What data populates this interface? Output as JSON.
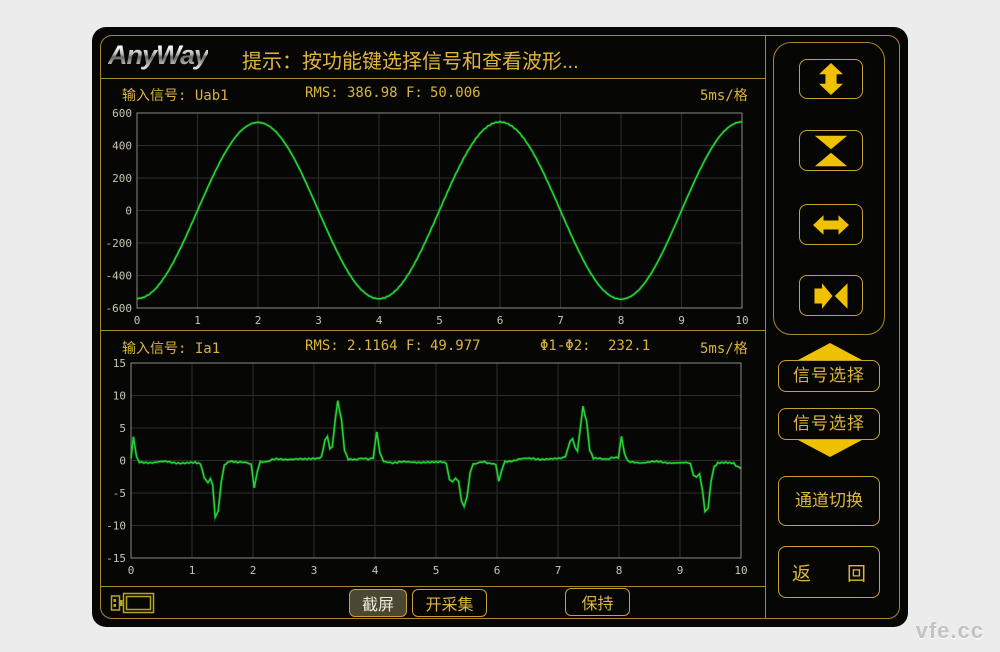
{
  "header": {
    "logo": "AnyWay",
    "prompt": "提示：按功能键选择信号和查看波形..."
  },
  "channel1": {
    "label": "输入信号:",
    "signal": "Uab1",
    "rms_label": "RMS:",
    "rms": "386.98",
    "f_label": "F:",
    "f": "50.006",
    "timebase": "5ms/格"
  },
  "channel2": {
    "label": "输入信号:",
    "signal": "Ia1",
    "rms_label": "RMS:",
    "rms": "2.1164",
    "f_label": "F:",
    "f": "49.977",
    "phase_label": "Φ1-Φ2:",
    "phase": "232.1",
    "timebase": "5ms/格"
  },
  "bottom_bar": {
    "screenshot": "截屏",
    "start_capture": "开采集",
    "hold": "保持"
  },
  "sidebar": {
    "signal_select_up": "信号选择",
    "signal_select_down": "信号选择",
    "channel_switch": "通道切换",
    "back_left": "返",
    "back_right": "回"
  },
  "icons": {
    "v_expand": "expand-vertical-arrows",
    "v_compress": "compress-vertical-arrows",
    "h_expand": "expand-horizontal-arrows",
    "h_compress": "compress-horizontal-arrows",
    "usb": "usb-screen-capture",
    "sig_up": "triangle-up",
    "sig_down": "triangle-down"
  },
  "watermark": "vfe.cc",
  "colors": {
    "page_bg": "#ececec",
    "screen_bg": "#060604",
    "gold_line": "#a8872a",
    "gold_border": "#c9a132",
    "gold_text": "#dcb53d",
    "icon_yellow": "#f0c100",
    "green": "#24d636",
    "green_glow": "#28dc3c",
    "grid": "#2d2d2d",
    "frame": "#8a8a8a",
    "axis_text": "#c9c6b4"
  },
  "chart_data": [
    {
      "type": "line",
      "signal": "Uab1",
      "xlim": [
        0,
        10
      ],
      "ylim": [
        -600,
        600
      ],
      "x_ticks": [
        0,
        1,
        2,
        3,
        4,
        5,
        6,
        7,
        8,
        9,
        10
      ],
      "y_ticks": [
        600,
        400,
        200,
        0,
        -200,
        -400,
        -600
      ],
      "x_unit": "div (5ms/格)",
      "grid": true,
      "x_start": 0,
      "x_step": 0.1,
      "noise": 4,
      "values": [
        -545,
        -538,
        -518,
        -486,
        -441,
        -385,
        -320,
        -247,
        -168,
        -85,
        0,
        85,
        168,
        247,
        320,
        385,
        441,
        486,
        518,
        538,
        545,
        538,
        518,
        486,
        441,
        385,
        320,
        247,
        168,
        85,
        0,
        -85,
        -168,
        -247,
        -320,
        -385,
        -441,
        -486,
        -518,
        -538,
        -545,
        -538,
        -518,
        -486,
        -441,
        -385,
        -320,
        -247,
        -168,
        -85,
        0,
        85,
        168,
        247,
        320,
        385,
        441,
        486,
        518,
        538,
        545,
        538,
        518,
        486,
        441,
        385,
        320,
        247,
        168,
        85,
        0,
        -85,
        -168,
        -247,
        -320,
        -385,
        -441,
        -486,
        -518,
        -538,
        -545,
        -538,
        -518,
        -486,
        -441,
        -385,
        -320,
        -247,
        -168,
        -85,
        0,
        85,
        168,
        247,
        320,
        385,
        441,
        486,
        518,
        538,
        545
      ]
    },
    {
      "type": "line",
      "signal": "Ia1",
      "xlim": [
        0,
        10
      ],
      "ylim": [
        -15,
        15
      ],
      "x_ticks": [
        0,
        1,
        2,
        3,
        4,
        5,
        6,
        7,
        8,
        9,
        10
      ],
      "y_ticks": [
        15,
        10,
        5,
        0,
        -5,
        -10,
        -15
      ],
      "x_unit": "div (5ms/格)",
      "grid": true,
      "noise": 0.18,
      "points": [
        [
          0,
          0.3
        ],
        [
          0.04,
          3.6
        ],
        [
          0.09,
          0.6
        ],
        [
          0.14,
          -0.2
        ],
        [
          0.35,
          -0.3
        ],
        [
          0.6,
          -0.2
        ],
        [
          0.85,
          -0.4
        ],
        [
          1.05,
          -0.3
        ],
        [
          1.14,
          -0.4
        ],
        [
          1.2,
          -2.6
        ],
        [
          1.26,
          -3.5
        ],
        [
          1.3,
          -2.8
        ],
        [
          1.34,
          -3.6
        ],
        [
          1.38,
          -8.8
        ],
        [
          1.43,
          -7.8
        ],
        [
          1.48,
          -3.2
        ],
        [
          1.53,
          -0.7
        ],
        [
          1.62,
          -0.2
        ],
        [
          1.75,
          -0.35
        ],
        [
          1.9,
          -0.25
        ],
        [
          1.97,
          -0.5
        ],
        [
          2.02,
          -4.2
        ],
        [
          2.07,
          -1.6
        ],
        [
          2.12,
          -0.3
        ],
        [
          2.35,
          0.15
        ],
        [
          2.6,
          0.25
        ],
        [
          2.85,
          0.15
        ],
        [
          3.05,
          0.25
        ],
        [
          3.12,
          0.5
        ],
        [
          3.18,
          3.0
        ],
        [
          3.22,
          3.8
        ],
        [
          3.26,
          1.8
        ],
        [
          3.3,
          2.2
        ],
        [
          3.35,
          6.5
        ],
        [
          3.39,
          9.2
        ],
        [
          3.45,
          6.2
        ],
        [
          3.5,
          1.6
        ],
        [
          3.56,
          0.3
        ],
        [
          3.7,
          0.15
        ],
        [
          3.85,
          0.3
        ],
        [
          3.97,
          0.3
        ],
        [
          4.03,
          4.5
        ],
        [
          4.08,
          1.2
        ],
        [
          4.14,
          -0.25
        ],
        [
          4.4,
          -0.3
        ],
        [
          4.65,
          -0.2
        ],
        [
          4.9,
          -0.35
        ],
        [
          5.1,
          -0.3
        ],
        [
          5.17,
          -0.5
        ],
        [
          5.22,
          -2.8
        ],
        [
          5.27,
          -3.4
        ],
        [
          5.32,
          -2.7
        ],
        [
          5.37,
          -3.2
        ],
        [
          5.42,
          -6.2
        ],
        [
          5.46,
          -7.2
        ],
        [
          5.51,
          -5.4
        ],
        [
          5.56,
          -1.8
        ],
        [
          5.61,
          -0.5
        ],
        [
          5.72,
          -0.25
        ],
        [
          5.88,
          -0.35
        ],
        [
          5.98,
          -0.5
        ],
        [
          6.03,
          -3.2
        ],
        [
          6.08,
          -1.4
        ],
        [
          6.13,
          -0.25
        ],
        [
          6.35,
          0.2
        ],
        [
          6.6,
          0.3
        ],
        [
          6.85,
          0.2
        ],
        [
          7.05,
          0.3
        ],
        [
          7.12,
          0.5
        ],
        [
          7.2,
          3.0
        ],
        [
          7.24,
          3.5
        ],
        [
          7.28,
          1.9
        ],
        [
          7.32,
          1.4
        ],
        [
          7.37,
          5.5
        ],
        [
          7.41,
          8.3
        ],
        [
          7.47,
          6.0
        ],
        [
          7.52,
          1.5
        ],
        [
          7.58,
          0.3
        ],
        [
          7.72,
          0.2
        ],
        [
          7.88,
          0.35
        ],
        [
          7.99,
          0.4
        ],
        [
          8.04,
          3.8
        ],
        [
          8.09,
          1.0
        ],
        [
          8.15,
          -0.25
        ],
        [
          8.4,
          -0.3
        ],
        [
          8.65,
          -0.2
        ],
        [
          8.9,
          -0.35
        ],
        [
          9.1,
          -0.3
        ],
        [
          9.17,
          -0.5
        ],
        [
          9.22,
          -2.3
        ],
        [
          9.27,
          -2.6
        ],
        [
          9.32,
          -1.9
        ],
        [
          9.37,
          -4.8
        ],
        [
          9.41,
          -8.0
        ],
        [
          9.46,
          -7.2
        ],
        [
          9.51,
          -3.2
        ],
        [
          9.56,
          -0.9
        ],
        [
          9.62,
          -0.3
        ],
        [
          9.75,
          -0.25
        ],
        [
          9.88,
          -0.4
        ],
        [
          10,
          -1.3
        ]
      ]
    }
  ]
}
